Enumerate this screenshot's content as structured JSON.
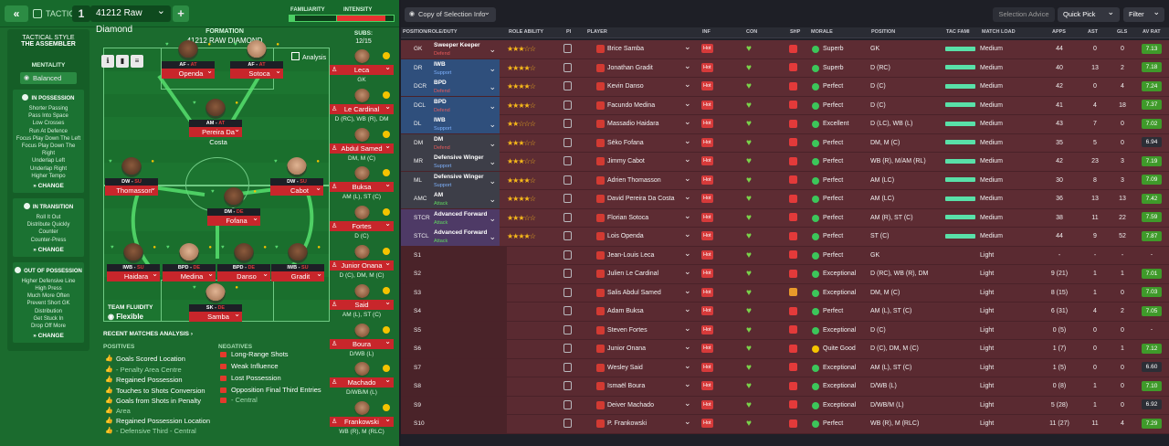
{
  "topbar": {
    "back_label": "«",
    "tactics_label": "TACTICS",
    "tactic_num": "1",
    "formation_select": "41212 Raw Diamond",
    "plus_label": "+",
    "familiarity_label": "FAMILIARITY",
    "intensity_label": "INTENSITY",
    "familiarity_level": 0.1,
    "intensity_level": 0.85
  },
  "style": {
    "title": "TACTICAL STYLE",
    "name": "THE ASSEMBLER",
    "mentality_label": "MENTALITY",
    "mentality": "Balanced",
    "in_possession": {
      "title": "IN POSSESSION",
      "items": [
        "Shorter Passing",
        "Pass Into Space",
        "Low Crosses",
        "Run At Defence",
        "Focus Play Down The Left",
        "Focus Play Down The Right",
        "Underlap Left",
        "Underlap Right",
        "Higher Tempo"
      ],
      "change": "CHANGE"
    },
    "in_transition": {
      "title": "IN TRANSITION",
      "items": [
        "Roll It Out",
        "Distribute Quickly",
        "Counter",
        "Counter-Press"
      ],
      "change": "CHANGE"
    },
    "out_of_possession": {
      "title": "OUT OF POSSESSION",
      "items": [
        "Higher Defensive Line",
        "High Press",
        "Much More Often",
        "Prevent Short GK",
        "Distribution",
        "Get Stuck In",
        "Drop Off More"
      ],
      "change": "CHANGE"
    }
  },
  "pitch": {
    "formation_label": "FORMATION",
    "formation_name": "41212 RAW DIAMOND",
    "analysis_label": "Analysis",
    "fluidity_label": "TEAM FLUIDITY",
    "fluidity": "Flexible",
    "players": [
      {
        "role": "AF",
        "duty": "AT",
        "name": "Openda"
      },
      {
        "role": "AF",
        "duty": "AT",
        "name": "Sotoca"
      },
      {
        "role": "AM",
        "duty": "AT",
        "name": "Pereira Da Costa"
      },
      {
        "role": "DW",
        "duty": "SU",
        "name": "Thomasson"
      },
      {
        "role": "DW",
        "duty": "SU",
        "name": "Cabot"
      },
      {
        "role": "DM",
        "duty": "DE",
        "name": "Fofana"
      },
      {
        "role": "IWB",
        "duty": "SU",
        "name": "Haidara"
      },
      {
        "role": "BPD",
        "duty": "DE",
        "name": "Medina"
      },
      {
        "role": "BPD",
        "duty": "DE",
        "name": "Danso"
      },
      {
        "role": "IWB",
        "duty": "SU",
        "name": "Gradit"
      },
      {
        "role": "SK",
        "duty": "DE",
        "name": "Samba"
      }
    ]
  },
  "subs": {
    "label": "SUBS:",
    "count": "12/15",
    "players": [
      {
        "name": "Leca",
        "pos": "GK"
      },
      {
        "name": "Le Cardinal",
        "pos": "D (RC), WB (R), DM"
      },
      {
        "name": "Abdul Samed",
        "pos": "DM, M (C)"
      },
      {
        "name": "Buksa",
        "pos": "AM (L), ST (C)"
      },
      {
        "name": "Fortes",
        "pos": "D (C)"
      },
      {
        "name": "Junior Onana",
        "pos": "D (C), DM, M (C)"
      },
      {
        "name": "Said",
        "pos": "AM (L), ST (C)"
      },
      {
        "name": "Boura",
        "pos": "D/WB (L)"
      },
      {
        "name": "Machado",
        "pos": "D/WB/M (L)"
      },
      {
        "name": "Frankowski",
        "pos": "WB (R), M (RLC)"
      }
    ]
  },
  "analysis": {
    "title": "RECENT MATCHES ANALYSIS",
    "positives_label": "POSITIVES",
    "negatives_label": "NEGATIVES",
    "positives": [
      "Goals Scored Location",
      "- Penalty Area Centre",
      "Regained Possession",
      "Touches to Shots Conversion",
      "Goals from Shots in Penalty",
      "Area",
      "Regained Possession Location",
      "- Defensive Third - Central"
    ],
    "negatives": [
      "Long-Range Shots",
      "Weak Influence",
      "Lost Possession",
      "Opposition Final Third Entries",
      "- Central"
    ]
  },
  "right": {
    "copy_label": "Copy of Selection Info",
    "selection_advice": "Selection Advice",
    "quick_pick": "Quick Pick",
    "filter": "Filter",
    "headers": {
      "pos": "POSITION/ROLE/DUTY",
      "ra": "ROLE ABILITY",
      "pi": "PI",
      "player": "PLAYER",
      "inf": "INF",
      "con": "CON",
      "shp": "SHP",
      "morale": "MORALE",
      "position": "POSITION",
      "tf": "TAC FAMI",
      "ml": "MATCH LOAD",
      "apps": "APPS",
      "ast": "AST",
      "gls": "GLS",
      "av": "AV RAT"
    },
    "rows": [
      {
        "pos": "GK",
        "role": "Sweeper Keeper",
        "duty": "Defend",
        "stars": "★★★☆☆",
        "player": "Brice Samba",
        "morale": "Superb",
        "position": "GK",
        "load": "Medium",
        "apps": "44",
        "ast": "0",
        "gls": "0",
        "av": "7.13",
        "rc": "#5d2c33",
        "dc": "#e85b5b"
      },
      {
        "pos": "DR",
        "role": "IWB",
        "duty": "Support",
        "stars": "★★★★☆",
        "player": "Jonathan Gradit",
        "morale": "Superb",
        "position": "D (RC)",
        "load": "Medium",
        "apps": "40",
        "ast": "13",
        "gls": "2",
        "av": "7.18",
        "rc": "#2f4f7c",
        "dc": "#7fb3ff"
      },
      {
        "pos": "DCR",
        "role": "BPD",
        "duty": "Defend",
        "stars": "★★★★☆",
        "player": "Kevin Danso",
        "morale": "Perfect",
        "position": "D (C)",
        "load": "Medium",
        "apps": "42",
        "ast": "0",
        "gls": "4",
        "av": "7.24",
        "rc": "#2f4f7c",
        "dc": "#e85b5b"
      },
      {
        "pos": "DCL",
        "role": "BPD",
        "duty": "Defend",
        "stars": "★★★★☆",
        "player": "Facundo Medina",
        "morale": "Perfect",
        "position": "D (C)",
        "load": "Medium",
        "apps": "41",
        "ast": "4",
        "gls": "18",
        "av": "7.37",
        "rc": "#2f4f7c",
        "dc": "#e85b5b"
      },
      {
        "pos": "DL",
        "role": "IWB",
        "duty": "Support",
        "stars": "★★☆☆☆",
        "player": "Massadio Haidara",
        "morale": "Excellent",
        "position": "D (LC), WB (L)",
        "load": "Medium",
        "apps": "43",
        "ast": "7",
        "gls": "0",
        "av": "7.02",
        "rc": "#2f4f7c",
        "dc": "#7fb3ff"
      },
      {
        "pos": "DM",
        "role": "DM",
        "duty": "Defend",
        "stars": "★★★☆☆",
        "player": "Séko Fofana",
        "morale": "Perfect",
        "position": "DM, M (C)",
        "load": "Medium",
        "apps": "35",
        "ast": "5",
        "gls": "0",
        "av": "6.94",
        "rc": "#3d3e48",
        "dc": "#e85b5b"
      },
      {
        "pos": "MR",
        "role": "Defensive Winger",
        "duty": "Support",
        "stars": "★★★☆☆",
        "player": "Jimmy Cabot",
        "morale": "Perfect",
        "position": "WB (R), M/AM (RL)",
        "load": "Medium",
        "apps": "42",
        "ast": "23",
        "gls": "3",
        "av": "7.19",
        "rc": "#3d3e48",
        "dc": "#7fb3ff"
      },
      {
        "pos": "ML",
        "role": "Defensive Winger",
        "duty": "Support",
        "stars": "★★★★☆",
        "player": "Adrien Thomasson",
        "morale": "Perfect",
        "position": "AM (LC)",
        "load": "Medium",
        "apps": "30",
        "ast": "8",
        "gls": "3",
        "av": "7.09",
        "rc": "#3d3e48",
        "dc": "#7fb3ff"
      },
      {
        "pos": "AMC",
        "role": "AM",
        "duty": "Attack",
        "stars": "★★★★☆",
        "player": "David Pereira Da Costa",
        "morale": "Perfect",
        "position": "AM (LC)",
        "load": "Medium",
        "apps": "36",
        "ast": "13",
        "gls": "13",
        "av": "7.42",
        "rc": "#3d3e48",
        "dc": "#5fd75f"
      },
      {
        "pos": "STCR",
        "role": "Advanced Forward",
        "duty": "Attack",
        "stars": "★★★☆☆",
        "player": "Florian Sotoca",
        "morale": "Perfect",
        "position": "AM (R), ST (C)",
        "load": "Medium",
        "apps": "38",
        "ast": "11",
        "gls": "22",
        "av": "7.59",
        "rc": "#4e3a66",
        "dc": "#5fd75f"
      },
      {
        "pos": "STCL",
        "role": "Advanced Forward",
        "duty": "Attack",
        "stars": "★★★★☆",
        "player": "Lois Openda",
        "morale": "Perfect",
        "position": "ST (C)",
        "load": "Medium",
        "apps": "44",
        "ast": "9",
        "gls": "52",
        "av": "7.87",
        "rc": "#4e3a66",
        "dc": "#5fd75f"
      },
      {
        "pos": "S1",
        "player": "Jean-Louis Leca",
        "morale": "Perfect",
        "position": "GK",
        "load": "Light",
        "apps": "-",
        "ast": "-",
        "gls": "-",
        "av": "-"
      },
      {
        "pos": "S2",
        "player": "Julien Le Cardinal",
        "morale": "Exceptional",
        "position": "D (RC), WB (R), DM",
        "load": "Light",
        "apps": "9 (21)",
        "ast": "1",
        "gls": "1",
        "av": "7.01"
      },
      {
        "pos": "S3",
        "player": "Salis Abdul Samed",
        "morale": "Exceptional",
        "position": "DM, M (C)",
        "load": "Light",
        "apps": "8 (15)",
        "ast": "1",
        "gls": "0",
        "av": "7.03"
      },
      {
        "pos": "S4",
        "player": "Adam Buksa",
        "morale": "Perfect",
        "position": "AM (L), ST (C)",
        "load": "Light",
        "apps": "6 (31)",
        "ast": "4",
        "gls": "2",
        "av": "7.05"
      },
      {
        "pos": "S5",
        "player": "Steven Fortes",
        "morale": "Exceptional",
        "position": "D (C)",
        "load": "Light",
        "apps": "0 (5)",
        "ast": "0",
        "gls": "0",
        "av": "-"
      },
      {
        "pos": "S6",
        "player": "Junior Onana",
        "morale": "Quite Good",
        "position": "D (C), DM, M (C)",
        "load": "Light",
        "apps": "1 (7)",
        "ast": "0",
        "gls": "1",
        "av": "7.12"
      },
      {
        "pos": "S7",
        "player": "Wesley Said",
        "morale": "Exceptional",
        "position": "AM (L), ST (C)",
        "load": "Light",
        "apps": "1 (5)",
        "ast": "0",
        "gls": "0",
        "av": "6.60"
      },
      {
        "pos": "S8",
        "player": "Ismaël Boura",
        "morale": "Exceptional",
        "position": "D/WB (L)",
        "load": "Light",
        "apps": "0 (8)",
        "ast": "1",
        "gls": "0",
        "av": "7.10"
      },
      {
        "pos": "S9",
        "player": "Deiver Machado",
        "morale": "Exceptional",
        "position": "D/WB/M (L)",
        "load": "Light",
        "apps": "5 (28)",
        "ast": "1",
        "gls": "0",
        "av": "6.92"
      },
      {
        "pos": "S10",
        "player": "P. Frankowski",
        "morale": "Perfect",
        "position": "WB (R), M (RLC)",
        "load": "Light",
        "apps": "11 (27)",
        "ast": "11",
        "gls": "4",
        "av": "7.29"
      }
    ]
  }
}
